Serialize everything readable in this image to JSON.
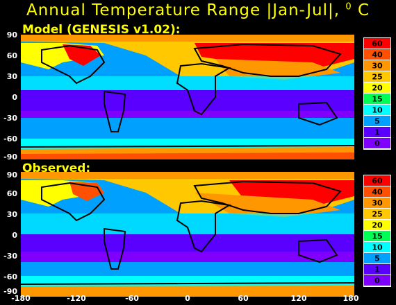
{
  "title": {
    "text": "Annual Temperature Range |Jan-Jul|, ",
    "unit_sup": "0",
    "unit": " C"
  },
  "panels": [
    {
      "label": "Model (GENESIS v1.02):"
    },
    {
      "label": "Observed:"
    }
  ],
  "y_ticks": [
    "90",
    "60",
    "30",
    "0",
    "-30",
    "-60",
    "-90"
  ],
  "x_ticks": [
    "-180",
    "-120",
    "-60",
    "0",
    "60",
    "120",
    "180"
  ],
  "legend": {
    "levels": [
      "60",
      "40",
      "30",
      "25",
      "20",
      "15",
      "10",
      "5",
      "1",
      "0"
    ],
    "colors": [
      "#ff0000",
      "#ff4f00",
      "#ff9800",
      "#ffc800",
      "#ffff00",
      "#00ff55",
      "#00ffff",
      "#00a0ff",
      "#5a00ff",
      "#8000ff"
    ]
  },
  "colors": {
    "title": "#ffff00",
    "background": "#000000",
    "coast": "#000000"
  }
}
